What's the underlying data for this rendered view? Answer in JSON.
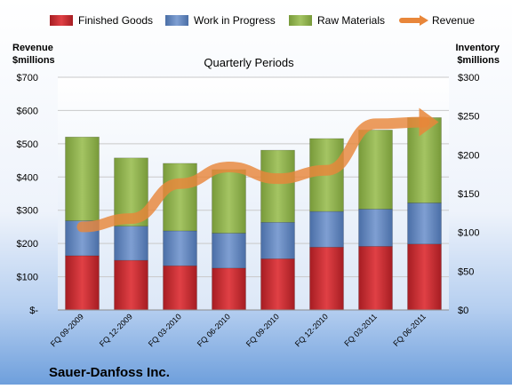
{
  "chart_data": {
    "type": "bar",
    "stacked": true,
    "title": "Quarterly Periods",
    "company": "Sauer-Danfoss Inc.",
    "left_axis_label": [
      "Revenue",
      "$millions"
    ],
    "right_axis_label": [
      "Inventory",
      "$millions"
    ],
    "categories": [
      "FQ 09-2009",
      "FQ 12-2009",
      "FQ 03-2010",
      "FQ 06-2010",
      "FQ 09-2010",
      "FQ 12-2010",
      "FQ 03-2011",
      "FQ 06-2011"
    ],
    "left_ticks": [
      "$-",
      "$100",
      "$200",
      "$300",
      "$400",
      "$500",
      "$600",
      "$700"
    ],
    "right_ticks": [
      "$0",
      "$50",
      "$100",
      "$150",
      "$200",
      "$250",
      "$300"
    ],
    "ylim_left": [
      0,
      700
    ],
    "ylim_right": [
      0,
      300
    ],
    "series": [
      {
        "name": "Finished Goods",
        "axis": "right",
        "color": "#c0262b",
        "values": [
          70,
          64,
          57,
          54,
          66,
          81,
          82,
          85
        ]
      },
      {
        "name": "Work in Progress",
        "axis": "right",
        "color": "#5b80b8",
        "values": [
          45,
          44,
          45,
          45,
          47,
          46,
          48,
          53
        ]
      },
      {
        "name": "Raw Materials",
        "axis": "right",
        "color": "#8cad4a",
        "values": [
          108,
          88,
          87,
          82,
          93,
          94,
          102,
          110
        ]
      },
      {
        "name": "Revenue",
        "axis": "left",
        "type": "line",
        "color": "#e8863a",
        "values": [
          250,
          275,
          380,
          430,
          395,
          420,
          560,
          565
        ]
      }
    ],
    "legend_position": "top",
    "grid": true
  }
}
